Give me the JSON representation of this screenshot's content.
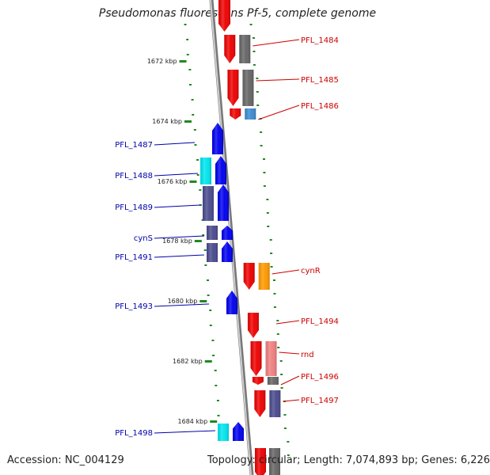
{
  "title": "Pseudomonas fluorescens Pf-5, complete genome",
  "footer": {
    "accession": "Accession: NC_004129",
    "summary": "Topology: circular; Length: 7,074,893 bp; Genes: 6,226"
  },
  "colors": {
    "forward_gene": "#ee0000",
    "reverse_gene": "#0000ee",
    "forward_label": "#cc0000",
    "reverse_label": "#0000aa",
    "backbone": "#999999",
    "ticks": "#228822",
    "cog_gray": "#666666",
    "cog_orange": "#ff9900",
    "cog_cyan": "#00e5ee",
    "cog_purple": "#4b4b8f",
    "cog_steelblue": "#3d8bd1",
    "cog_pink": "#f08080"
  },
  "scale_labels": [
    "1672 kbp",
    "1674 kbp",
    "1676 kbp",
    "1678 kbp",
    "1680 kbp",
    "1682 kbp",
    "1684 kbp"
  ],
  "forward_genes": [
    {
      "label": "PFL_1484",
      "cog": "cog_gray"
    },
    {
      "label": "PFL_1485",
      "cog": "cog_gray"
    },
    {
      "label": "PFL_1486",
      "cog": "cog_steelblue"
    },
    {
      "label": "cynR",
      "cog": "cog_orange"
    },
    {
      "label": "PFL_1494",
      "cog": ""
    },
    {
      "label": "rnd",
      "cog": "cog_pink"
    },
    {
      "label": "PFL_1496",
      "cog": "cog_gray"
    },
    {
      "label": "PFL_1497",
      "cog": "cog_purple"
    }
  ],
  "reverse_genes": [
    {
      "label": "PFL_1487",
      "cog": ""
    },
    {
      "label": "PFL_1488",
      "cog": "cog_cyan"
    },
    {
      "label": "PFL_1489",
      "cog": "cog_purple"
    },
    {
      "label": "cynS",
      "cog": "cog_purple"
    },
    {
      "label": "PFL_1491",
      "cog": "cog_purple"
    },
    {
      "label": "PFL_1493",
      "cog": ""
    },
    {
      "label": "PFL_1498",
      "cog": "cog_cyan"
    }
  ]
}
